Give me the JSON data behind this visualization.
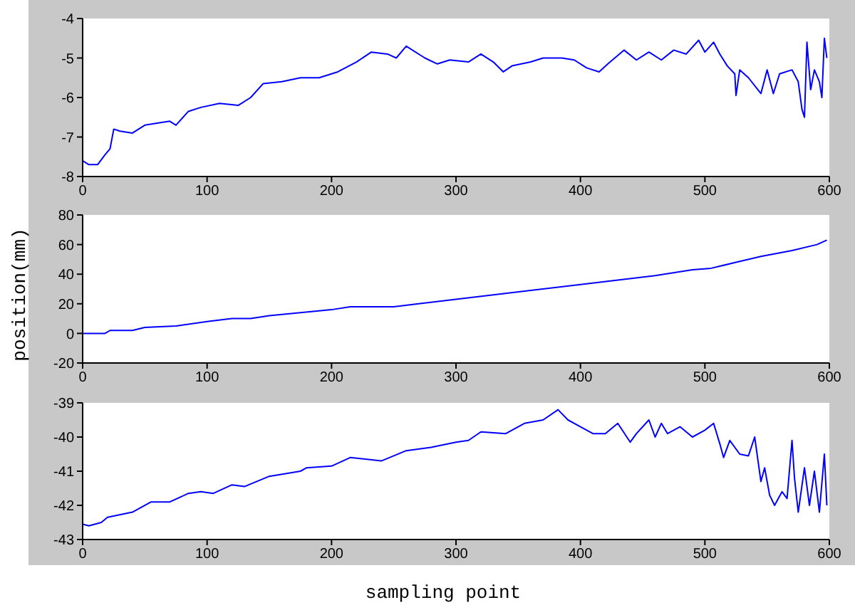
{
  "chart_data": [
    {
      "type": "line",
      "x": [
        0,
        5,
        12,
        18,
        22,
        25,
        30,
        40,
        50,
        60,
        70,
        75,
        85,
        95,
        110,
        125,
        135,
        145,
        160,
        175,
        190,
        205,
        220,
        232,
        245,
        252,
        260,
        275,
        285,
        295,
        310,
        320,
        330,
        338,
        345,
        360,
        370,
        385,
        395,
        405,
        415,
        422,
        435,
        445,
        455,
        465,
        475,
        485,
        495,
        500,
        507,
        512,
        518,
        524,
        525,
        528,
        535,
        545,
        550,
        555,
        560,
        570,
        575,
        578,
        580,
        582,
        585,
        588,
        592,
        594,
        596,
        598
      ],
      "series": [
        {
          "color": "#0000ff",
          "values": [
            -7.6,
            -7.7,
            -7.7,
            -7.45,
            -7.3,
            -6.8,
            -6.85,
            -6.9,
            -6.7,
            -6.65,
            -6.6,
            -6.7,
            -6.35,
            -6.25,
            -6.15,
            -6.2,
            -6.0,
            -5.65,
            -5.6,
            -5.5,
            -5.5,
            -5.35,
            -5.1,
            -4.85,
            -4.9,
            -5.0,
            -4.7,
            -5.0,
            -5.15,
            -5.05,
            -5.1,
            -4.9,
            -5.1,
            -5.35,
            -5.2,
            -5.1,
            -5.0,
            -5.0,
            -5.05,
            -5.25,
            -5.35,
            -5.15,
            -4.8,
            -5.05,
            -4.85,
            -5.05,
            -4.8,
            -4.9,
            -4.55,
            -4.85,
            -4.6,
            -4.9,
            -5.2,
            -5.4,
            -5.95,
            -5.3,
            -5.5,
            -5.9,
            -5.3,
            -5.9,
            -5.4,
            -5.3,
            -5.6,
            -6.3,
            -6.5,
            -4.6,
            -5.8,
            -5.3,
            -5.6,
            -6.0,
            -4.5,
            -5.0
          ]
        }
      ],
      "xlim": [
        0,
        600
      ],
      "xticks": [
        0,
        100,
        200,
        300,
        400,
        500,
        600
      ],
      "ylim": [
        -8,
        -4
      ],
      "yticks": [
        -8,
        -7,
        -6,
        -5,
        -4
      ],
      "grid": false,
      "legend": false
    },
    {
      "type": "line",
      "ylabel": "position(mm)",
      "x": [
        0,
        18,
        22,
        40,
        50,
        75,
        100,
        120,
        135,
        150,
        175,
        200,
        215,
        250,
        270,
        300,
        330,
        360,
        400,
        430,
        460,
        490,
        505,
        525,
        545,
        570,
        590,
        598
      ],
      "series": [
        {
          "color": "#0000ff",
          "values": [
            0,
            0,
            2,
            2,
            4,
            5,
            8,
            10,
            10,
            12,
            14,
            16,
            18,
            18,
            20,
            23,
            26,
            29,
            33,
            36,
            39,
            43,
            44,
            48,
            52,
            56,
            60,
            63
          ]
        }
      ],
      "xlim": [
        0,
        600
      ],
      "xticks": [
        0,
        100,
        200,
        300,
        400,
        500,
        600
      ],
      "ylim": [
        -20,
        80
      ],
      "yticks": [
        -20,
        0,
        20,
        40,
        60,
        80
      ],
      "grid": false,
      "legend": false
    },
    {
      "type": "line",
      "xlabel": "sampling point",
      "x": [
        0,
        5,
        15,
        20,
        40,
        55,
        70,
        85,
        95,
        105,
        120,
        130,
        150,
        175,
        180,
        200,
        215,
        240,
        260,
        280,
        300,
        310,
        320,
        340,
        355,
        370,
        382,
        390,
        400,
        410,
        420,
        430,
        440,
        445,
        455,
        460,
        465,
        470,
        480,
        490,
        500,
        507,
        512,
        515,
        520,
        528,
        535,
        540,
        545,
        548,
        552,
        556,
        562,
        566,
        570,
        572,
        575,
        580,
        584,
        588,
        592,
        596,
        598
      ],
      "series": [
        {
          "color": "#0000ff",
          "values": [
            -42.55,
            -42.6,
            -42.5,
            -42.35,
            -42.2,
            -41.9,
            -41.9,
            -41.65,
            -41.6,
            -41.65,
            -41.4,
            -41.45,
            -41.15,
            -41.0,
            -40.9,
            -40.85,
            -40.6,
            -40.7,
            -40.4,
            -40.3,
            -40.15,
            -40.1,
            -39.85,
            -39.9,
            -39.6,
            -39.5,
            -39.2,
            -39.5,
            -39.7,
            -39.9,
            -39.9,
            -39.6,
            -40.15,
            -39.9,
            -39.5,
            -40.0,
            -39.6,
            -39.9,
            -39.7,
            -40.0,
            -39.8,
            -39.6,
            -40.2,
            -40.6,
            -40.1,
            -40.5,
            -40.55,
            -40.0,
            -41.3,
            -40.9,
            -41.7,
            -42.0,
            -41.6,
            -41.8,
            -40.1,
            -41.2,
            -42.2,
            -40.9,
            -42.0,
            -41.0,
            -42.2,
            -40.5,
            -42.0
          ]
        }
      ],
      "xlim": [
        0,
        600
      ],
      "xticks": [
        0,
        100,
        200,
        300,
        400,
        500,
        600
      ],
      "ylim": [
        -43,
        -39
      ],
      "yticks": [
        -43,
        -42,
        -41,
        -40,
        -39
      ],
      "grid": false,
      "legend": false
    }
  ]
}
